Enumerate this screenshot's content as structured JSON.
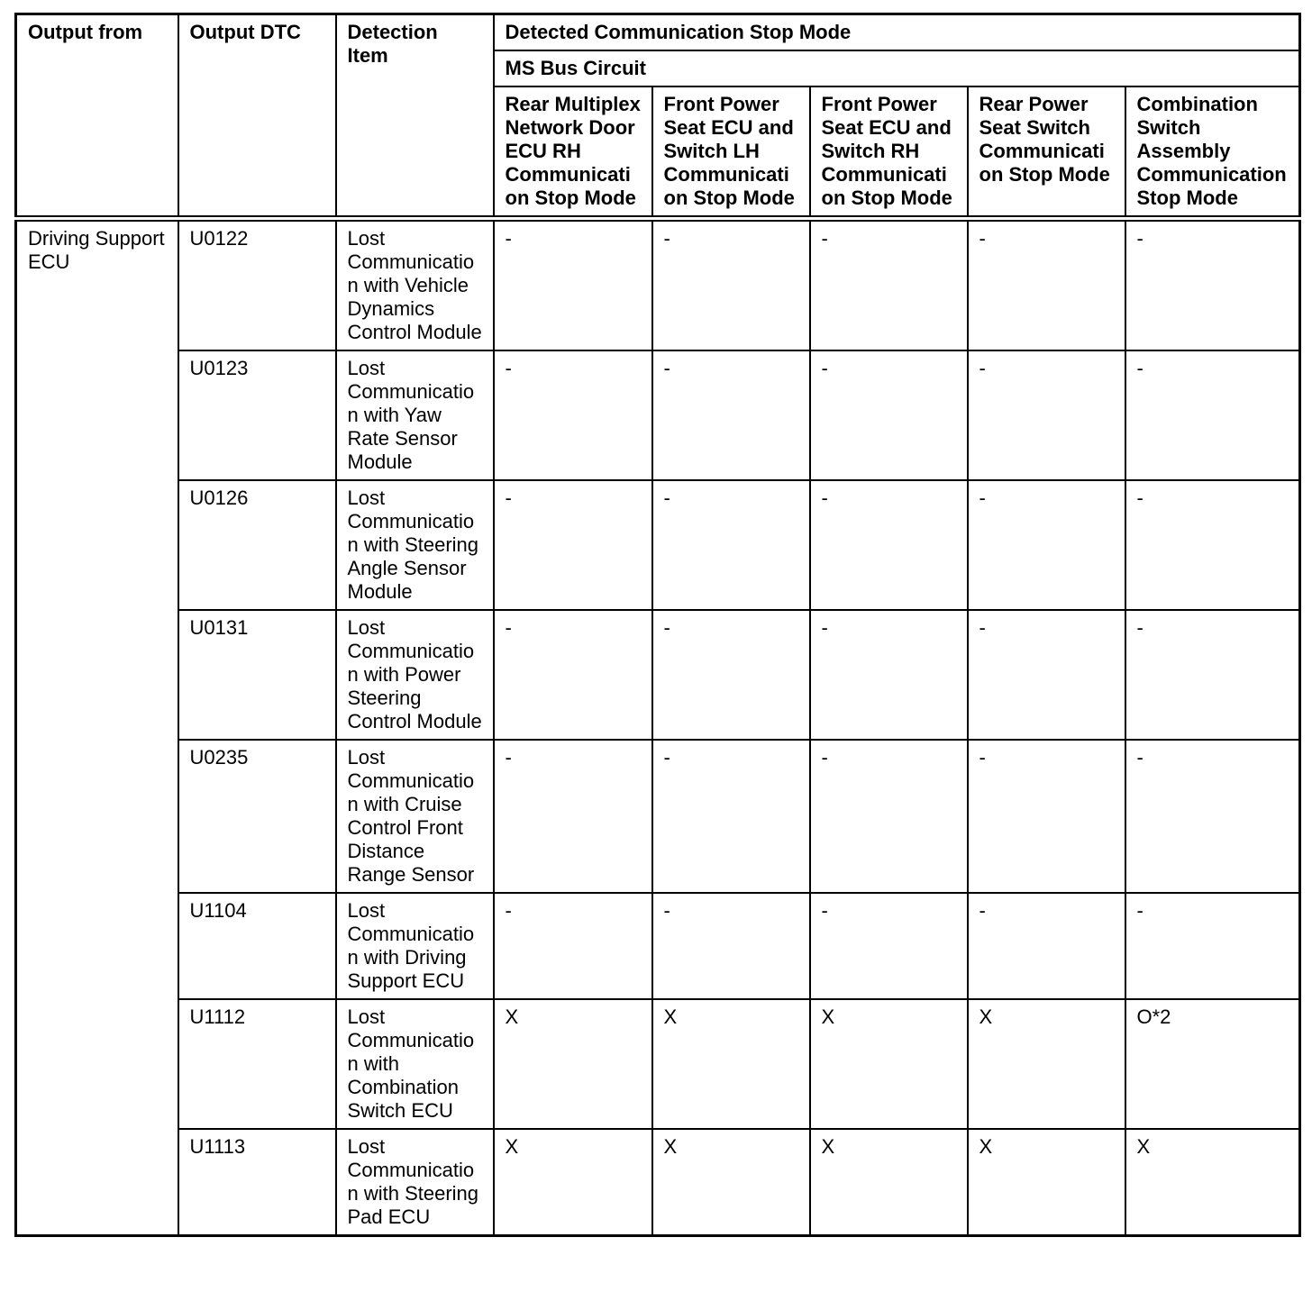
{
  "table": {
    "header": {
      "output_from": "Output from",
      "output_dtc": "Output DTC",
      "detection_item": "Detection Item",
      "detected_group": "Detected Communication Stop Mode",
      "bus_group": "MS Bus Circuit",
      "stop_modes": [
        "Rear Multiplex Network Door ECU RH Communication Stop Mode",
        "Front Power Seat ECU and Switch LH Communication Stop Mode",
        "Front Power Seat ECU and Switch RH Communication Stop Mode",
        "Rear Power Seat Switch Communication Stop Mode",
        "Combination Switch Assembly Communication Stop Mode"
      ]
    },
    "output_from_value": "Driving Support ECU",
    "rows": [
      {
        "dtc": "U0122",
        "detection_item": "Lost Communication with Vehicle Dynamics Control Module",
        "values": [
          "-",
          "-",
          "-",
          "-",
          "-"
        ]
      },
      {
        "dtc": "U0123",
        "detection_item": "Lost Communication with Yaw Rate Sensor Module",
        "values": [
          "-",
          "-",
          "-",
          "-",
          "-"
        ]
      },
      {
        "dtc": "U0126",
        "detection_item": "Lost Communication with Steering Angle Sensor Module",
        "values": [
          "-",
          "-",
          "-",
          "-",
          "-"
        ]
      },
      {
        "dtc": "U0131",
        "detection_item": "Lost Communication with Power Steering Control Module",
        "values": [
          "-",
          "-",
          "-",
          "-",
          "-"
        ]
      },
      {
        "dtc": "U0235",
        "detection_item": "Lost Communication with Cruise Control Front Distance Range Sensor",
        "values": [
          "-",
          "-",
          "-",
          "-",
          "-"
        ]
      },
      {
        "dtc": "U1104",
        "detection_item": "Lost Communication with Driving Support ECU",
        "values": [
          "-",
          "-",
          "-",
          "-",
          "-"
        ]
      },
      {
        "dtc": "U1112",
        "detection_item": "Lost Communication with Combination Switch ECU",
        "values": [
          "X",
          "X",
          "X",
          "X",
          "O*2"
        ]
      },
      {
        "dtc": "U1113",
        "detection_item": "Lost Communication with Steering Pad ECU",
        "values": [
          "X",
          "X",
          "X",
          "X",
          "X"
        ]
      }
    ],
    "colors": {
      "border": "#000000",
      "text": "#000000",
      "background": "#ffffff"
    }
  }
}
